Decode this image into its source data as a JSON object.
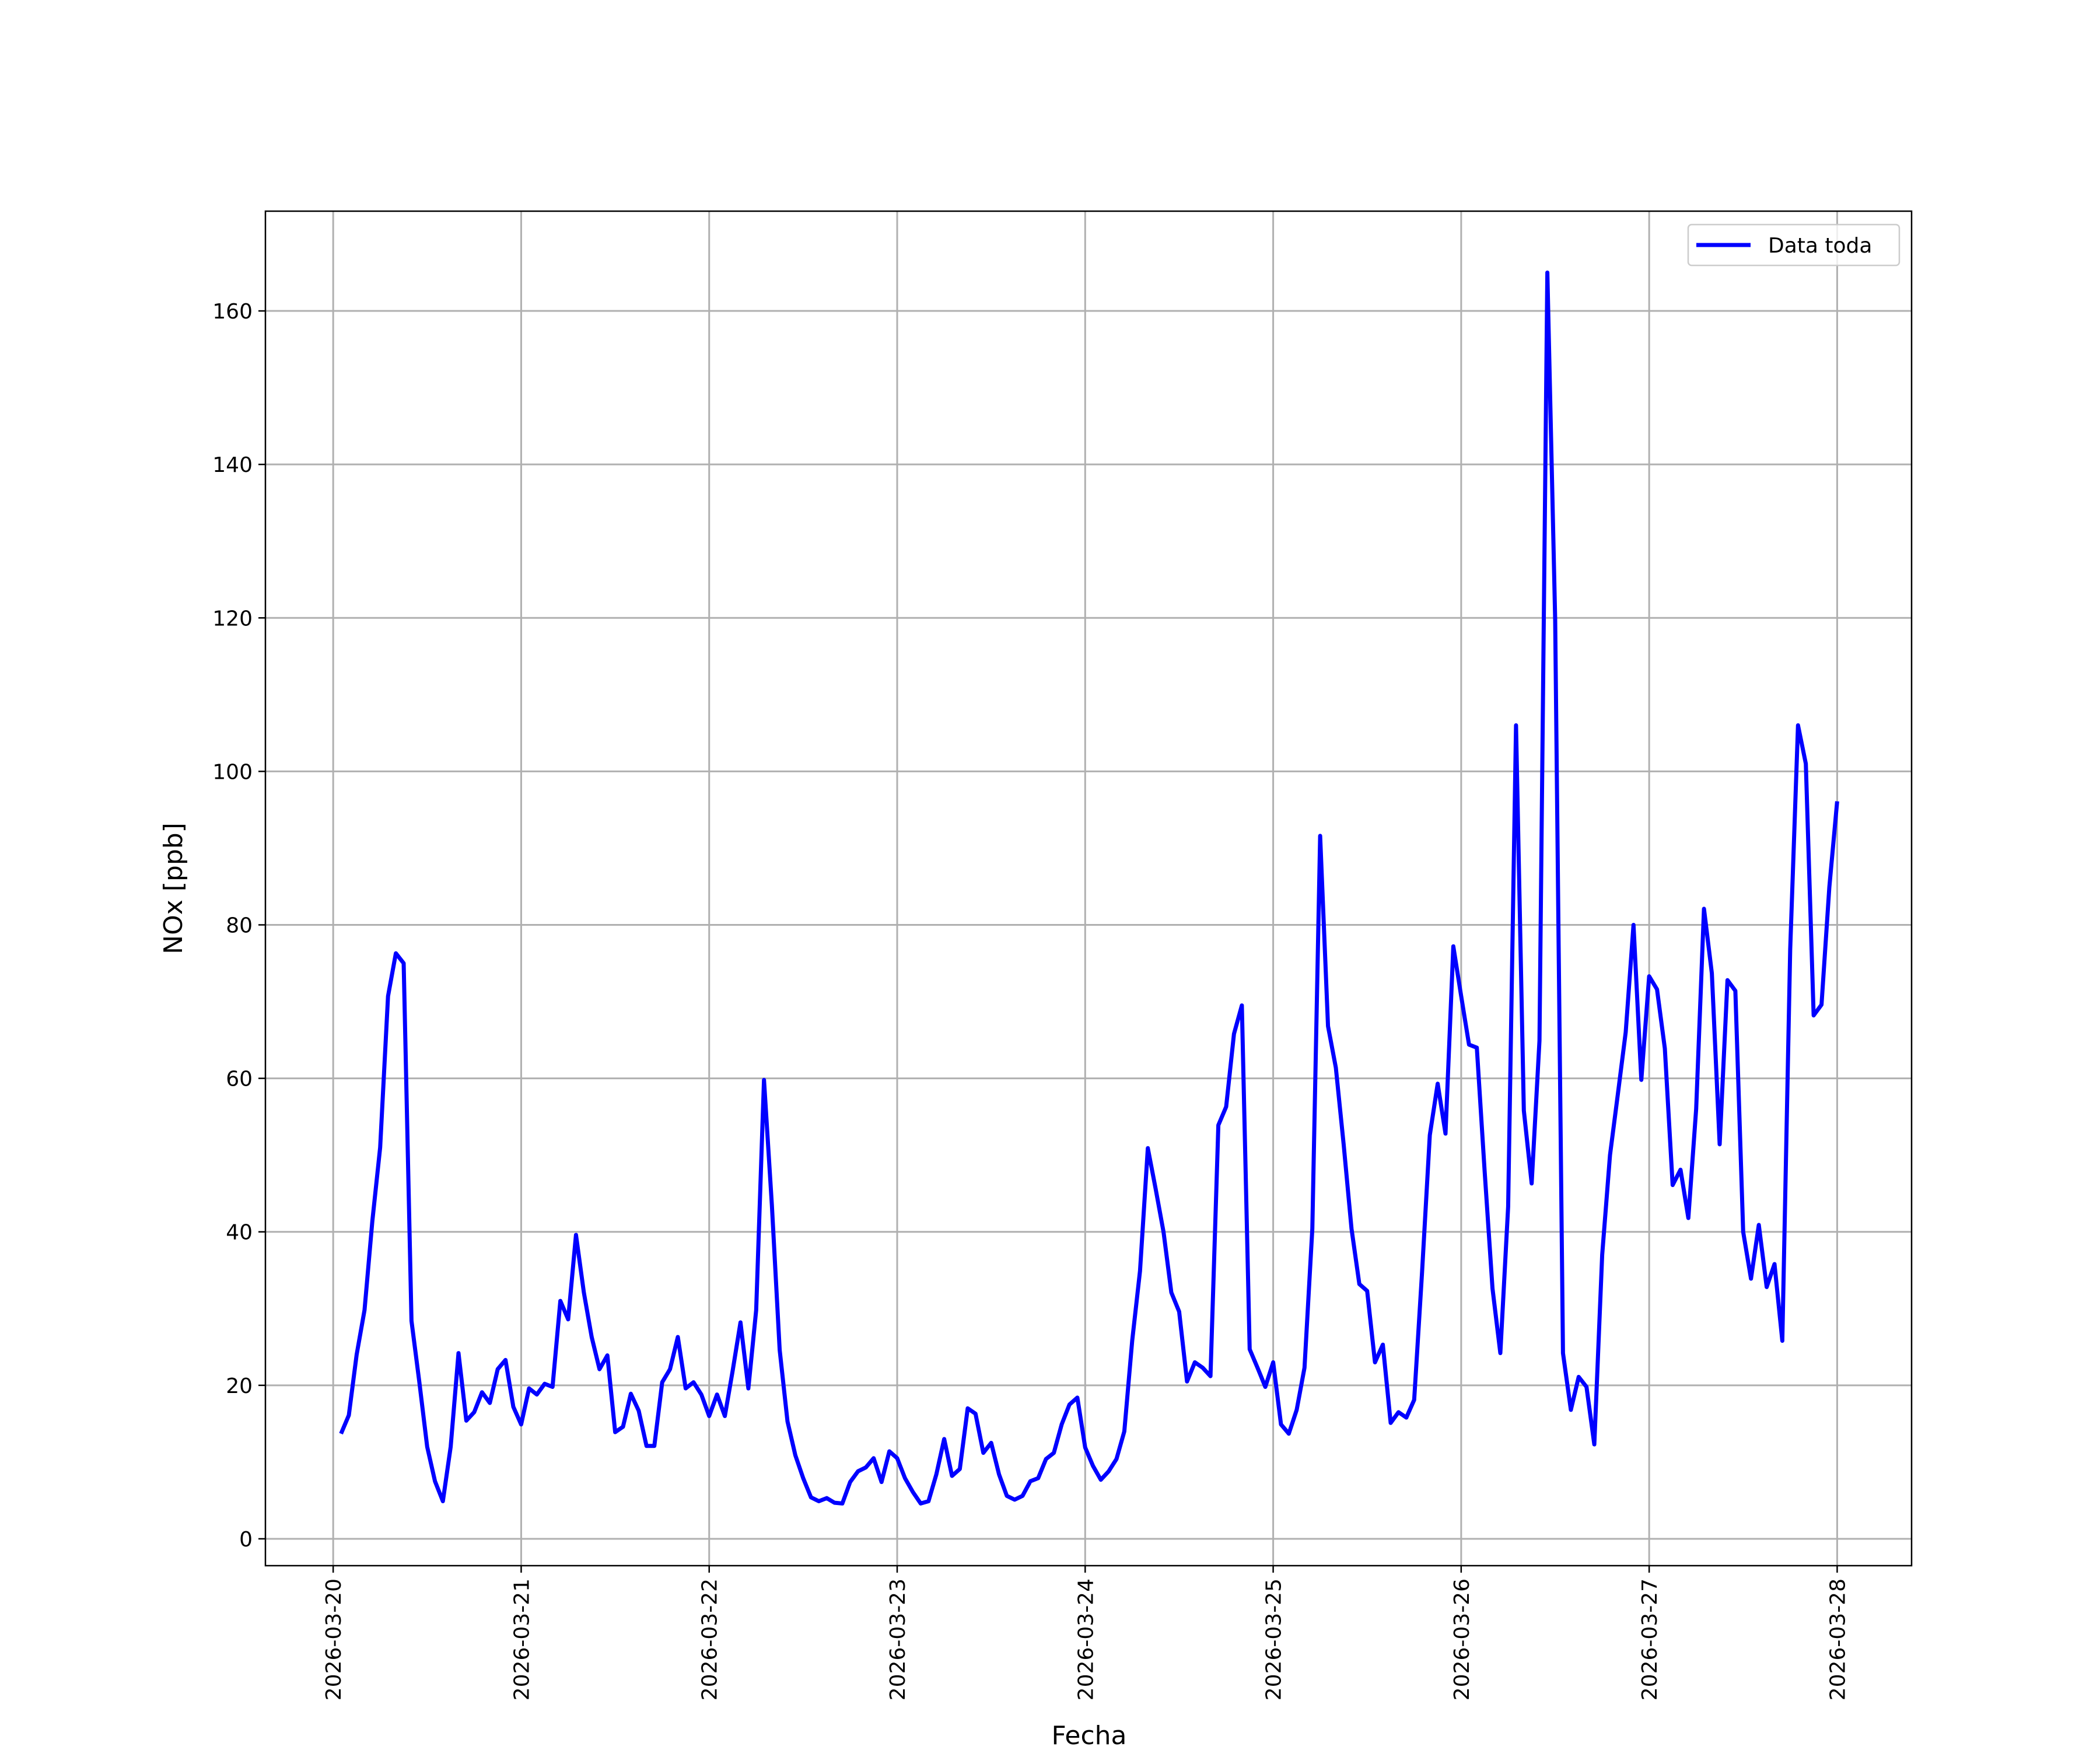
{
  "chart_data": {
    "type": "line",
    "xlabel": "Fecha",
    "ylabel": "NOx [ppb]",
    "xlim": [
      "2026-03-19T15:21",
      "2026-03-28T09:30"
    ],
    "xticks": [
      {
        "value": "2026-03-20T00:00",
        "label": "2026-03-20"
      },
      {
        "value": "2026-03-21T00:00",
        "label": "2026-03-21"
      },
      {
        "value": "2026-03-22T00:00",
        "label": "2026-03-22"
      },
      {
        "value": "2026-03-23T00:00",
        "label": "2026-03-23"
      },
      {
        "value": "2026-03-24T00:00",
        "label": "2026-03-24"
      },
      {
        "value": "2026-03-25T00:00",
        "label": "2026-03-25"
      },
      {
        "value": "2026-03-26T00:00",
        "label": "2026-03-26"
      },
      {
        "value": "2026-03-27T00:00",
        "label": "2026-03-27"
      },
      {
        "value": "2026-03-28T00:00",
        "label": "2026-03-28"
      }
    ],
    "ylim": [
      -3.5,
      173
    ],
    "yticks": [
      0,
      20,
      40,
      60,
      80,
      100,
      120,
      140,
      160
    ],
    "grid": true,
    "legend": "upper right",
    "x": [
      "2026-03-20T01:00",
      "2026-03-20T02:00",
      "2026-03-20T03:00",
      "2026-03-20T04:00",
      "2026-03-20T05:00",
      "2026-03-20T06:00",
      "2026-03-20T07:00",
      "2026-03-20T08:00",
      "2026-03-20T09:00",
      "2026-03-20T10:00",
      "2026-03-20T11:00",
      "2026-03-20T12:00",
      "2026-03-20T13:00",
      "2026-03-20T14:00",
      "2026-03-20T15:00",
      "2026-03-20T16:00",
      "2026-03-20T17:00",
      "2026-03-20T18:00",
      "2026-03-20T19:00",
      "2026-03-20T20:00",
      "2026-03-20T21:00",
      "2026-03-20T22:00",
      "2026-03-20T23:00",
      "2026-03-21T00:00",
      "2026-03-21T01:00",
      "2026-03-21T02:00",
      "2026-03-21T03:00",
      "2026-03-21T04:00",
      "2026-03-21T05:00",
      "2026-03-21T06:00",
      "2026-03-21T07:00",
      "2026-03-21T08:00",
      "2026-03-21T09:00",
      "2026-03-21T10:00",
      "2026-03-21T11:00",
      "2026-03-21T12:00",
      "2026-03-21T13:00",
      "2026-03-21T14:00",
      "2026-03-21T15:00",
      "2026-03-21T16:00",
      "2026-03-21T17:00",
      "2026-03-21T18:00",
      "2026-03-21T19:00",
      "2026-03-21T20:00",
      "2026-03-21T21:00",
      "2026-03-21T22:00",
      "2026-03-21T23:00",
      "2026-03-22T00:00",
      "2026-03-22T01:00",
      "2026-03-22T02:00",
      "2026-03-22T03:00",
      "2026-03-22T04:00",
      "2026-03-22T05:00",
      "2026-03-22T06:00",
      "2026-03-22T07:00",
      "2026-03-22T08:00",
      "2026-03-22T09:00",
      "2026-03-22T10:00",
      "2026-03-22T11:00",
      "2026-03-22T12:00",
      "2026-03-22T13:00",
      "2026-03-22T14:00",
      "2026-03-22T15:00",
      "2026-03-22T16:00",
      "2026-03-22T17:00",
      "2026-03-22T18:00",
      "2026-03-22T19:00",
      "2026-03-22T20:00",
      "2026-03-22T21:00",
      "2026-03-22T22:00",
      "2026-03-22T23:00",
      "2026-03-23T00:00",
      "2026-03-23T01:00",
      "2026-03-23T02:00",
      "2026-03-23T03:00",
      "2026-03-23T04:00",
      "2026-03-23T05:00",
      "2026-03-23T06:00",
      "2026-03-23T07:00",
      "2026-03-23T08:00",
      "2026-03-23T09:00",
      "2026-03-23T10:00",
      "2026-03-23T11:00",
      "2026-03-23T12:00",
      "2026-03-23T13:00",
      "2026-03-23T14:00",
      "2026-03-23T15:00",
      "2026-03-23T16:00",
      "2026-03-23T17:00",
      "2026-03-23T18:00",
      "2026-03-23T19:00",
      "2026-03-23T20:00",
      "2026-03-23T21:00",
      "2026-03-23T22:00",
      "2026-03-23T23:00",
      "2026-03-24T00:00",
      "2026-03-24T01:00",
      "2026-03-24T02:00",
      "2026-03-24T03:00",
      "2026-03-24T04:00",
      "2026-03-24T05:00",
      "2026-03-24T06:00",
      "2026-03-24T07:00",
      "2026-03-24T08:00",
      "2026-03-24T09:00",
      "2026-03-24T10:00",
      "2026-03-24T11:00",
      "2026-03-24T12:00",
      "2026-03-24T13:00",
      "2026-03-24T14:00",
      "2026-03-24T15:00",
      "2026-03-24T16:00",
      "2026-03-24T17:00",
      "2026-03-24T18:00",
      "2026-03-24T19:00",
      "2026-03-24T20:00",
      "2026-03-24T21:00",
      "2026-03-24T22:00",
      "2026-03-24T23:00",
      "2026-03-25T00:00",
      "2026-03-25T01:00",
      "2026-03-25T02:00",
      "2026-03-25T03:00",
      "2026-03-25T04:00",
      "2026-03-25T05:00",
      "2026-03-25T06:00",
      "2026-03-25T07:00",
      "2026-03-25T08:00",
      "2026-03-25T09:00",
      "2026-03-25T10:00",
      "2026-03-25T11:00",
      "2026-03-25T12:00",
      "2026-03-25T13:00",
      "2026-03-25T14:00",
      "2026-03-25T15:00",
      "2026-03-25T16:00",
      "2026-03-25T17:00",
      "2026-03-25T18:00",
      "2026-03-25T19:00",
      "2026-03-25T20:00",
      "2026-03-25T21:00",
      "2026-03-25T22:00",
      "2026-03-25T23:00",
      "2026-03-26T00:00",
      "2026-03-26T01:00",
      "2026-03-26T02:00",
      "2026-03-26T03:00",
      "2026-03-26T04:00",
      "2026-03-26T05:00",
      "2026-03-26T06:00",
      "2026-03-26T07:00",
      "2026-03-26T08:00",
      "2026-03-26T09:00",
      "2026-03-26T10:00",
      "2026-03-26T11:00",
      "2026-03-26T12:00",
      "2026-03-26T13:00",
      "2026-03-26T14:00",
      "2026-03-26T15:00",
      "2026-03-26T16:00",
      "2026-03-26T17:00",
      "2026-03-26T18:00",
      "2026-03-26T19:00",
      "2026-03-26T20:00",
      "2026-03-26T21:00",
      "2026-03-26T22:00",
      "2026-03-26T23:00",
      "2026-03-27T00:00",
      "2026-03-27T01:00",
      "2026-03-27T02:00",
      "2026-03-27T03:00",
      "2026-03-27T04:00",
      "2026-03-27T05:00",
      "2026-03-27T06:00",
      "2026-03-27T07:00",
      "2026-03-27T08:00",
      "2026-03-27T09:00",
      "2026-03-27T10:00",
      "2026-03-27T11:00",
      "2026-03-27T12:00",
      "2026-03-27T13:00",
      "2026-03-27T14:00",
      "2026-03-27T15:00",
      "2026-03-27T16:00",
      "2026-03-27T17:00",
      "2026-03-27T18:00",
      "2026-03-27T19:00",
      "2026-03-27T20:00",
      "2026-03-27T21:00",
      "2026-03-27T22:00",
      "2026-03-27T23:00",
      "2026-03-28T00:00"
    ],
    "series": [
      {
        "name": "Data toda",
        "color": "#0000ff",
        "values": [
          13.7,
          16.1,
          24,
          29.8,
          41.4,
          51,
          70.7,
          76.3,
          75,
          28.4,
          20.4,
          12,
          7.5,
          4.9,
          12,
          24.2,
          15.4,
          16.5,
          19.1,
          17.7,
          22.1,
          23.3,
          17.2,
          14.9,
          19.6,
          18.8,
          20.2,
          19.8,
          31,
          28.6,
          39.6,
          32.1,
          26.3,
          22.1,
          23.9,
          13.9,
          14.6,
          18.9,
          16.7,
          12.1,
          12.1,
          20.4,
          22.1,
          26.3,
          19.6,
          20.4,
          18.8,
          16,
          18.8,
          16,
          21.9,
          28.2,
          19.6,
          29.8,
          59.8,
          43.5,
          24.6,
          15.3,
          10.9,
          7.9,
          5.4,
          4.9,
          5.3,
          4.7,
          4.6,
          7.4,
          8.8,
          9.3,
          10.5,
          7.4,
          11.4,
          10.5,
          7.9,
          6.1,
          4.6,
          4.9,
          8.4,
          13,
          8.2,
          9.1,
          17,
          16.3,
          11.2,
          12.5,
          8.4,
          5.6,
          5.1,
          5.6,
          7.5,
          7.9,
          10.4,
          11.2,
          14.9,
          17.5,
          18.4,
          11.9,
          9.5,
          7.7,
          8.8,
          10.4,
          14,
          25.8,
          34.9,
          50.9,
          45.6,
          40,
          32.1,
          29.6,
          20.5,
          23,
          22.3,
          21.2,
          53.9,
          56.3,
          65.8,
          69.5,
          24.7,
          22.3,
          19.8,
          23,
          14.9,
          13.7,
          16.8,
          22.3,
          40.4,
          91.6,
          66.8,
          61.4,
          51.4,
          40.4,
          33.2,
          32.3,
          23,
          25.3,
          15.1,
          16.5,
          15.8,
          18.1,
          34.6,
          52.6,
          59.3,
          52.8,
          77.2,
          70.7,
          64.4,
          64,
          47.9,
          32.6,
          24.2,
          43.3,
          106,
          55.8,
          46.3,
          64.9,
          165,
          119.8,
          24.2,
          16.8,
          21.1,
          19.8,
          12.3,
          37,
          50,
          57.9,
          66,
          80,
          59.8,
          73.3,
          71.6,
          63.9,
          46.1,
          48.1,
          41.8,
          56,
          82.1,
          73.7,
          51.4,
          72.8,
          71.4,
          40,
          33.9,
          40.9,
          32.8,
          35.8,
          25.8,
          76.8,
          106,
          101,
          68.2,
          69.6,
          84.9,
          96.1
        ]
      }
    ]
  }
}
